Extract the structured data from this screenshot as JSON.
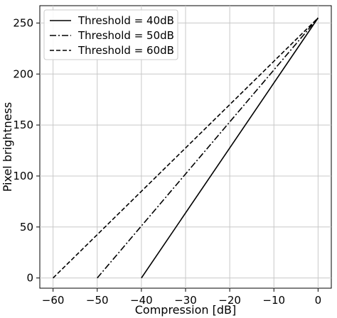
{
  "chart_data": {
    "type": "line",
    "title": "",
    "xlabel": "Compression [dB]",
    "ylabel": "Pixel brightness",
    "xlim": [
      -63,
      3
    ],
    "ylim": [
      -10,
      267
    ],
    "xticks": [
      -60,
      -50,
      -40,
      -30,
      -20,
      -10,
      0
    ],
    "yticks": [
      0,
      50,
      100,
      150,
      200,
      250
    ],
    "grid": true,
    "legend_position": "top-left",
    "series": [
      {
        "name": "Threshold = 40dB",
        "style": "solid",
        "color": "#000000",
        "x": [
          -40,
          0
        ],
        "y": [
          0,
          255
        ]
      },
      {
        "name": "Threshold = 50dB",
        "style": "dashdot",
        "color": "#000000",
        "x": [
          -50,
          0
        ],
        "y": [
          0,
          255
        ]
      },
      {
        "name": "Threshold = 60dB",
        "style": "dashed",
        "color": "#000000",
        "x": [
          -60,
          0
        ],
        "y": [
          0,
          255
        ]
      }
    ]
  }
}
